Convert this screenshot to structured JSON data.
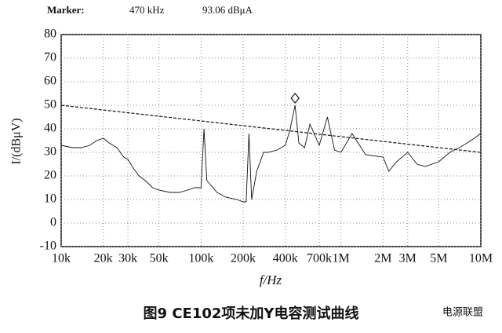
{
  "header": {
    "marker_label": "Marker:",
    "marker_freq": "470 kHz",
    "marker_level": "93.06 dBμA"
  },
  "chart_data": {
    "type": "line",
    "log_x": true,
    "grid": true,
    "xlabel": "f/Hz",
    "ylabel": "I/(dBμV)",
    "xlim": [
      10000,
      10000000
    ],
    "ylim": [
      -10,
      80
    ],
    "xticks": [
      {
        "value": 10000,
        "label": "10k"
      },
      {
        "value": 20000,
        "label": "20k"
      },
      {
        "value": 30000,
        "label": "30k"
      },
      {
        "value": 50000,
        "label": "50k"
      },
      {
        "value": 100000,
        "label": "100k"
      },
      {
        "value": 200000,
        "label": "200k"
      },
      {
        "value": 400000,
        "label": "400k"
      },
      {
        "value": 700000,
        "label": "700k"
      },
      {
        "value": 1000000,
        "label": "1M"
      },
      {
        "value": 2000000,
        "label": "2M"
      },
      {
        "value": 3000000,
        "label": "3M"
      },
      {
        "value": 5000000,
        "label": "5M"
      },
      {
        "value": 10000000,
        "label": "10M"
      }
    ],
    "yticks": [
      -10,
      0,
      10,
      20,
      30,
      40,
      50,
      60,
      70,
      80
    ],
    "series": [
      {
        "color": "#222",
        "dashed": true,
        "x": [
          10000,
          10000000
        ],
        "values": [
          50,
          30
        ]
      },
      {
        "color": "#111",
        "dashed": false,
        "x": [
          10000,
          12000,
          14000,
          16000,
          18000,
          20000,
          22000,
          25000,
          28000,
          30000,
          33000,
          36000,
          40000,
          45000,
          50000,
          60000,
          70000,
          80000,
          90000,
          100000,
          105000,
          110000,
          130000,
          150000,
          180000,
          200000,
          210000,
          220000,
          230000,
          250000,
          280000,
          300000,
          350000,
          400000,
          430000,
          470000,
          500000,
          550000,
          600000,
          700000,
          800000,
          900000,
          1000000,
          1200000,
          1500000,
          2000000,
          2200000,
          2500000,
          3000000,
          3500000,
          4000000,
          5000000,
          6000000,
          7000000,
          8000000,
          9000000,
          10000000
        ],
        "values": [
          33,
          32,
          32,
          33,
          35,
          36,
          34,
          32,
          28,
          27,
          23,
          20,
          18,
          15,
          14,
          13,
          13,
          14,
          15,
          15,
          40,
          18,
          13,
          11,
          10,
          9,
          9,
          38,
          10,
          22,
          30,
          30,
          31,
          33,
          39,
          50,
          34,
          32,
          42,
          33,
          45,
          31,
          30,
          38,
          29,
          28,
          22,
          26,
          30,
          25,
          24,
          26,
          30,
          32,
          34,
          36,
          38
        ]
      }
    ],
    "marker": {
      "x": 470000,
      "value": 53
    }
  },
  "caption": "图9 CE102项未加Y电容测试曲线",
  "watermark": "电源联盟"
}
